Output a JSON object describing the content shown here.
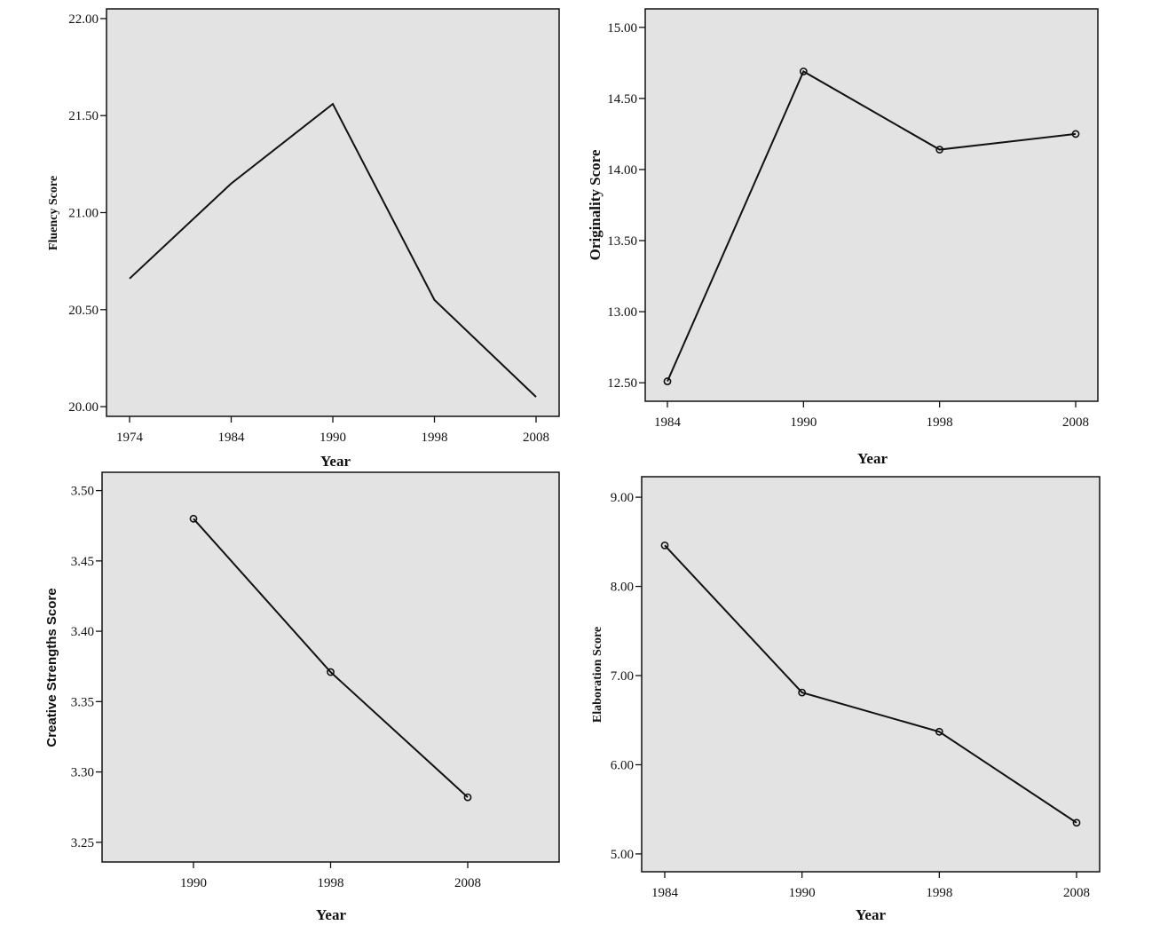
{
  "chart_data": [
    {
      "type": "line",
      "xlabel": "Year",
      "ylabel": "Fluency Score",
      "categories": [
        "1974",
        "1984",
        "1990",
        "1998",
        "2008"
      ],
      "values": [
        20.66,
        21.15,
        21.56,
        20.55,
        20.05
      ],
      "ylim": [
        19.95,
        22.05
      ],
      "yticks": [
        "20.00",
        "20.50",
        "21.00",
        "21.50",
        "22.00"
      ],
      "markers": false,
      "grid": false
    },
    {
      "type": "line",
      "xlabel": "Year",
      "ylabel": "Originality Score",
      "categories": [
        "1984",
        "1990",
        "1998",
        "2008"
      ],
      "values": [
        12.51,
        14.69,
        14.14,
        14.25
      ],
      "ylim": [
        12.37,
        15.13
      ],
      "yticks": [
        "12.50",
        "13.00",
        "13.50",
        "14.00",
        "14.50",
        "15.00"
      ],
      "markers": true,
      "grid": false
    },
    {
      "type": "line",
      "xlabel": "Year",
      "ylabel": "Creative Strengths Score",
      "categories": [
        "1990",
        "1998",
        "2008"
      ],
      "values": [
        3.48,
        3.371,
        3.282
      ],
      "ylim": [
        3.236,
        3.513
      ],
      "yticks": [
        "3.25",
        "3.30",
        "3.35",
        "3.40",
        "3.45",
        "3.50"
      ],
      "markers": true,
      "grid": false
    },
    {
      "type": "line",
      "xlabel": "Year",
      "ylabel": "Elaboration Score",
      "categories": [
        "1984",
        "1990",
        "1998",
        "2008"
      ],
      "values": [
        8.46,
        6.81,
        6.37,
        5.35
      ],
      "ylim": [
        4.8,
        9.23
      ],
      "yticks": [
        "5.00",
        "6.00",
        "7.00",
        "8.00",
        "9.00"
      ],
      "markers": true,
      "grid": false
    }
  ]
}
